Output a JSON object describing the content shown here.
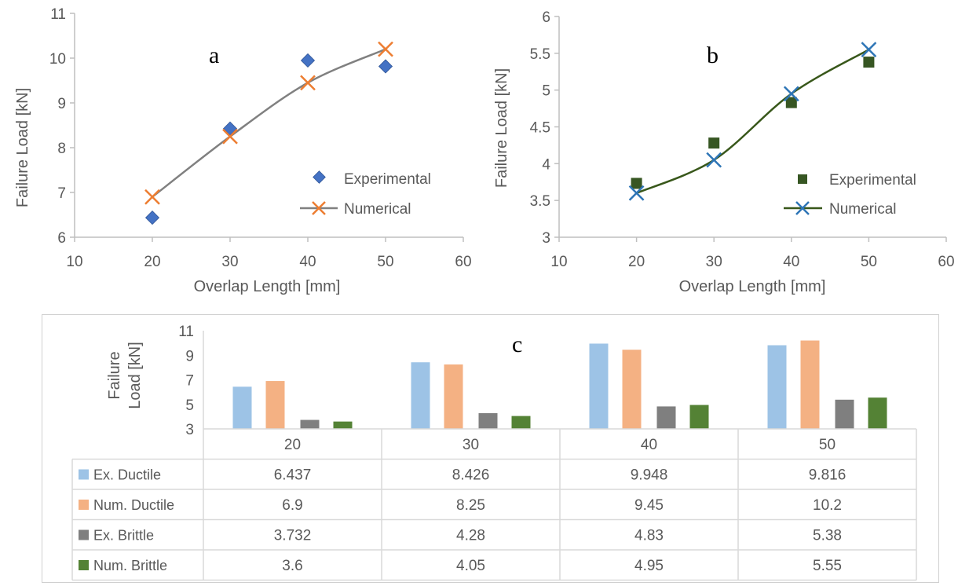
{
  "charts": {
    "a": {
      "letter": "a",
      "xlabel": "Overlap Length [mm]",
      "ylabel": "Failure Load [kN]",
      "x_ticks": [
        10,
        20,
        30,
        40,
        50,
        60
      ],
      "y_ticks": [
        6,
        7,
        8,
        9,
        10,
        11
      ],
      "legend": [
        "Experimental",
        "Numerical"
      ],
      "colors": {
        "experimental": "#4472c4",
        "numerical": "#ed7d31",
        "line": "#808080"
      }
    },
    "b": {
      "letter": "b",
      "xlabel": "Overlap Length [mm]",
      "ylabel": "Failure Load [kN]",
      "x_ticks": [
        10,
        20,
        30,
        40,
        50,
        60
      ],
      "y_ticks": [
        "3",
        "3.5",
        "4",
        "4.5",
        "5",
        "5.5",
        "6"
      ],
      "legend": [
        "Experimental",
        "Numerical"
      ],
      "colors": {
        "experimental": "#375623",
        "numerical": "#2e75b6",
        "line": "#38571a"
      }
    },
    "c": {
      "letter": "c",
      "ylabel_line1": "Failure",
      "ylabel_line2": "Load [kN]",
      "y_ticks": [
        3,
        5,
        7,
        9,
        11
      ],
      "columns": [
        "20",
        "30",
        "40",
        "50"
      ],
      "rows": [
        {
          "label": "Ex. Ductile",
          "color": "#9dc3e6",
          "cells": [
            "6.437",
            "8.426",
            "9.948",
            "9.816"
          ]
        },
        {
          "label": "Num. Ductile",
          "color": "#f4b183",
          "cells": [
            "6.9",
            "8.25",
            "9.45",
            "10.2"
          ]
        },
        {
          "label": "Ex. Brittle",
          "color": "#7f7f7f",
          "cells": [
            "3.732",
            "4.28",
            "4.83",
            "5.38"
          ]
        },
        {
          "label": "Num. Brittle",
          "color": "#548235",
          "cells": [
            "3.6",
            "4.05",
            "4.95",
            "5.55"
          ]
        }
      ]
    }
  },
  "chart_data": [
    {
      "type": "scatter",
      "title": "",
      "xlabel": "Overlap Length [mm]",
      "ylabel": "Failure Load [kN]",
      "xlim": [
        10,
        60
      ],
      "ylim": [
        6,
        11
      ],
      "grid": false,
      "legend_position": "right",
      "series": [
        {
          "name": "Experimental",
          "x": [
            20,
            30,
            40,
            50
          ],
          "y": [
            6.437,
            8.426,
            9.948,
            9.816
          ],
          "marker": "diamond"
        },
        {
          "name": "Numerical",
          "x": [
            20,
            30,
            40,
            50
          ],
          "y": [
            6.9,
            8.25,
            9.45,
            10.2
          ],
          "marker": "x",
          "line": "smooth"
        }
      ]
    },
    {
      "type": "scatter",
      "title": "",
      "xlabel": "Overlap Length [mm]",
      "ylabel": "Failure Load [kN]",
      "xlim": [
        10,
        60
      ],
      "ylim": [
        3,
        6
      ],
      "grid": false,
      "legend_position": "right",
      "series": [
        {
          "name": "Experimental",
          "x": [
            20,
            30,
            40,
            50
          ],
          "y": [
            3.732,
            4.28,
            4.83,
            5.38
          ],
          "marker": "square"
        },
        {
          "name": "Numerical",
          "x": [
            20,
            30,
            40,
            50
          ],
          "y": [
            3.6,
            4.05,
            4.95,
            5.55
          ],
          "marker": "x",
          "line": "smooth"
        }
      ]
    },
    {
      "type": "bar",
      "title": "",
      "xlabel": "",
      "ylabel": "Failure Load [kN]",
      "ylim": [
        3,
        11
      ],
      "categories": [
        "20",
        "30",
        "40",
        "50"
      ],
      "series": [
        {
          "name": "Ex. Ductile",
          "values": [
            6.437,
            8.426,
            9.948,
            9.816
          ]
        },
        {
          "name": "Num. Ductile",
          "values": [
            6.9,
            8.25,
            9.45,
            10.2
          ]
        },
        {
          "name": "Ex. Brittle",
          "values": [
            3.732,
            4.28,
            4.83,
            5.38
          ]
        },
        {
          "name": "Num. Brittle",
          "values": [
            3.6,
            4.05,
            4.95,
            5.55
          ]
        }
      ]
    }
  ]
}
